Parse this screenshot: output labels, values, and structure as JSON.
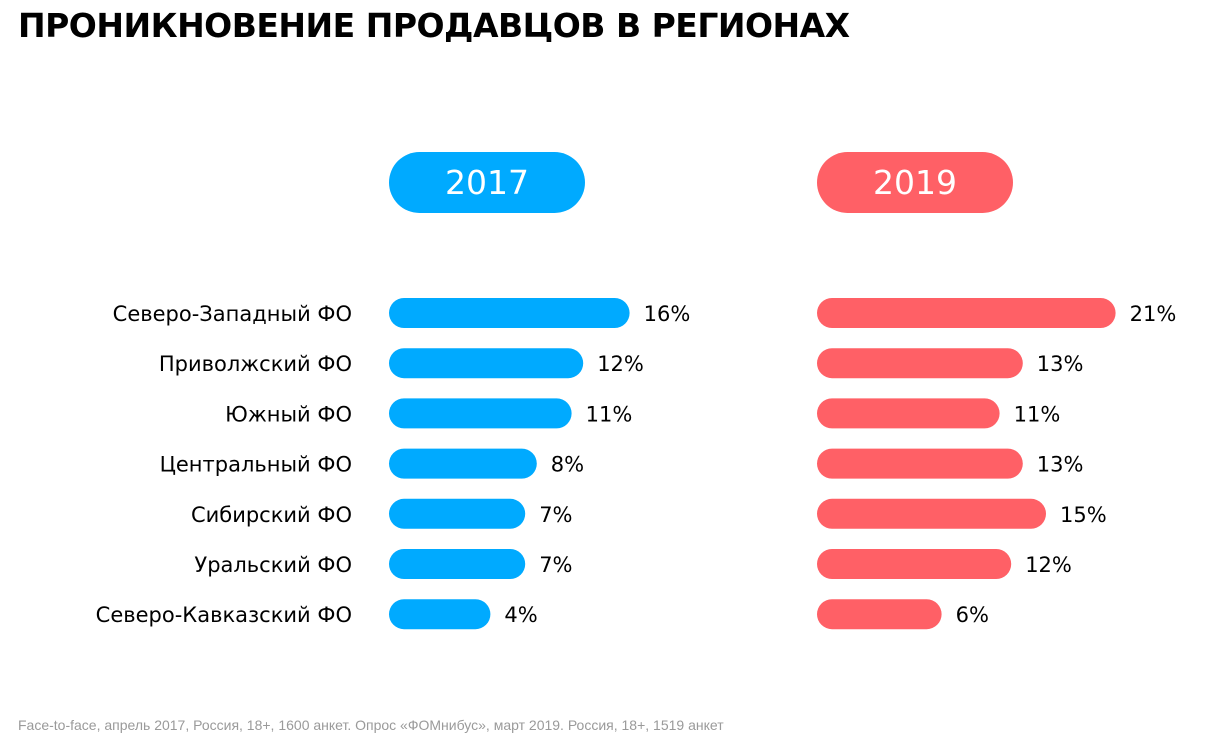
{
  "title": "ПРОНИКНОВЕНИЕ ПРОДАВЦОВ В РЕГИОНАХ",
  "footer": "Face-to-face, апрель 2017, Россия, 18+, 1600 анкет. Опрос «ФОМнибус», март 2019. Россия, 18+, 1519 анкет",
  "colors": {
    "y2017": "#00aaff",
    "y2019": "#ff6066"
  },
  "chart_data": {
    "type": "bar",
    "orientation": "horizontal",
    "categories": [
      "Северо-Западный ФО",
      "Приволжский ФО",
      "Южный ФО",
      "Центральный ФО",
      "Сибирский ФО",
      "Уральский ФО",
      "Северо-Кавказский ФО"
    ],
    "series": [
      {
        "name": "2017",
        "values": [
          16,
          12,
          11,
          8,
          7,
          7,
          4
        ],
        "labels": [
          "16%",
          "12%",
          "11%",
          "8%",
          "7%",
          "7%",
          "4%"
        ]
      },
      {
        "name": "2019",
        "values": [
          21,
          13,
          11,
          13,
          15,
          12,
          6
        ],
        "labels": [
          "21%",
          "13%",
          "11%",
          "13%",
          "15%",
          "12%",
          "6%"
        ]
      }
    ],
    "unit": "%",
    "grid": false,
    "legend": "top"
  }
}
